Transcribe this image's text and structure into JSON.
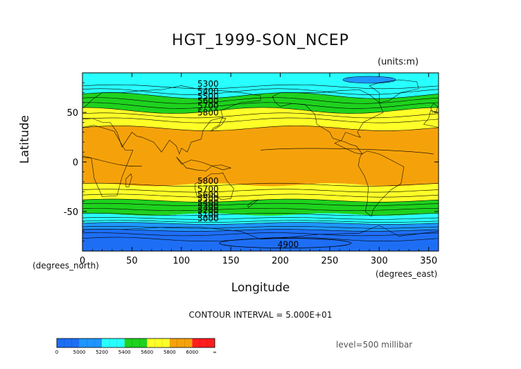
{
  "title": "HGT_1999-SON_NCEP",
  "units_label": "(units:m)",
  "x_axis": {
    "label": "Longitude",
    "note": "(degrees_east)",
    "ticks": [
      0,
      50,
      100,
      150,
      200,
      250,
      300,
      350
    ],
    "range": [
      0,
      360
    ]
  },
  "y_axis": {
    "label": "Latitude",
    "note": "(degrees_north)",
    "ticks": [
      50,
      0,
      -50
    ],
    "range": [
      -90,
      90
    ]
  },
  "contour_interval": "CONTOUR INTERVAL = 5.000E+01",
  "level": "level=500 millibar",
  "colors": {
    "gt_6000": "#ff1e1e",
    "5800_6000": "#f5a20a",
    "5600_5800": "#ffff28",
    "5400_5600": "#1ed21e",
    "5200_5400": "#28ffff",
    "5000_5200": "#1e96ff",
    "lt_5000": "#1e6ef5"
  },
  "contour_labels": {
    "north": [
      "5300",
      "5400",
      "5500",
      "5600",
      "5700",
      "5800"
    ],
    "south": [
      "5800",
      "5700",
      "5600",
      "5500",
      "5400",
      "5300",
      "5200",
      "5100",
      "5000"
    ],
    "minimum": "4900"
  },
  "legend": {
    "labels": [
      "0",
      "5000",
      "5200",
      "5400",
      "5600",
      "5800",
      "6000",
      "∞"
    ],
    "colors": [
      "#1e6ef5",
      "#1e96ff",
      "#28ffff",
      "#1ed21e",
      "#ffff28",
      "#f5a20a",
      "#ff1e1e"
    ]
  },
  "chart_data": {
    "type": "heatmap",
    "field": "500 mb geopotential height, SON 1999 mean",
    "units": "m",
    "band_boundaries_deg_north": [
      {
        "lat": 73,
        "value": 5300
      },
      {
        "lat": 65,
        "value": 5400
      },
      {
        "lat": 57,
        "value": 5500
      },
      {
        "lat": 50,
        "value": 5600
      },
      {
        "lat": 45,
        "value": 5700
      },
      {
        "lat": 33,
        "value": 5800
      },
      {
        "lat": -22,
        "value": 5800
      },
      {
        "lat": -33,
        "value": 5700
      },
      {
        "lat": -40,
        "value": 5600
      },
      {
        "lat": -45,
        "value": 5500
      },
      {
        "lat": -53,
        "value": 5400
      },
      {
        "lat": -58,
        "value": 5300
      },
      {
        "lat": -62,
        "value": 5200
      },
      {
        "lat": -66,
        "value": 5100
      },
      {
        "lat": -70,
        "value": 5000
      },
      {
        "lat": -82,
        "value": 4900
      }
    ]
  }
}
